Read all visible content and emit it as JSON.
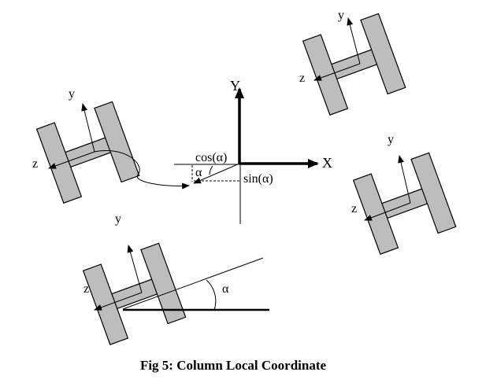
{
  "caption": "Fig 5: Column Local Coordinate",
  "axes": {
    "x_label": "X",
    "y_label": "Y"
  },
  "projection_labels": {
    "cos": "cos(α)",
    "sin": "sin(α)",
    "alpha": "α"
  },
  "section_labels": {
    "y": "y",
    "z": "z"
  },
  "bottom_section": {
    "y": "y",
    "z": "z",
    "alpha": "α"
  }
}
